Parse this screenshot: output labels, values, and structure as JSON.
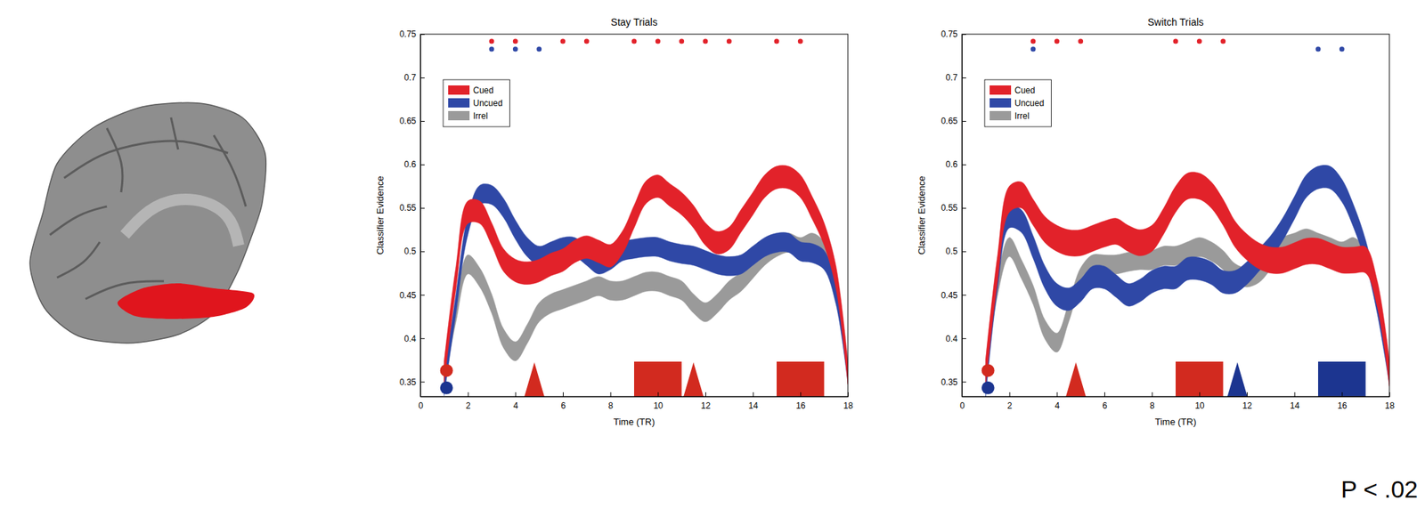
{
  "chart_data": [
    {
      "type": "line",
      "title": "Stay Trials",
      "xlabel": "Time (TR)",
      "ylabel": "Classifier Evidence",
      "xlim": [
        0,
        18
      ],
      "xticks": [
        0,
        2,
        4,
        6,
        8,
        10,
        12,
        14,
        16,
        18
      ],
      "ylim": [
        0.333,
        0.75
      ],
      "yticks": [
        0.35,
        0.4,
        0.45,
        0.5,
        0.55,
        0.6,
        0.65,
        0.7,
        0.75
      ],
      "legend": "upper left",
      "x": [
        1,
        1.5,
        2,
        2.5,
        3,
        3.5,
        4,
        4.5,
        5,
        5.5,
        6,
        6.5,
        7,
        7.5,
        8,
        8.5,
        9,
        9.5,
        10,
        10.5,
        11,
        11.5,
        12,
        12.5,
        13,
        13.5,
        14,
        14.5,
        15,
        15.5,
        16,
        16.5,
        17,
        17.5,
        18
      ],
      "series": [
        {
          "name": "Cued",
          "color": "#e2222a",
          "error": 0.013,
          "values": [
            0.36,
            0.47,
            0.545,
            0.545,
            0.52,
            0.49,
            0.478,
            0.475,
            0.478,
            0.485,
            0.49,
            0.5,
            0.505,
            0.5,
            0.495,
            0.51,
            0.54,
            0.568,
            0.575,
            0.565,
            0.555,
            0.54,
            0.52,
            0.51,
            0.515,
            0.535,
            0.555,
            0.575,
            0.585,
            0.585,
            0.575,
            0.55,
            0.52,
            0.47,
            0.36
          ],
          "significant_x": [
            3,
            4,
            6,
            7,
            9,
            10,
            11,
            12,
            13,
            15,
            16
          ]
        },
        {
          "name": "Uncued",
          "color": "#2f48a6",
          "error": 0.011,
          "values": [
            0.345,
            0.44,
            0.53,
            0.565,
            0.565,
            0.55,
            0.525,
            0.505,
            0.495,
            0.5,
            0.505,
            0.505,
            0.495,
            0.485,
            0.49,
            0.5,
            0.503,
            0.505,
            0.505,
            0.5,
            0.497,
            0.495,
            0.49,
            0.485,
            0.483,
            0.485,
            0.495,
            0.505,
            0.51,
            0.51,
            0.5,
            0.498,
            0.49,
            0.45,
            0.36
          ],
          "significant_x": [
            3,
            4,
            5
          ]
        },
        {
          "name": "Irrel",
          "color": "#9a9a9a",
          "error": 0.011,
          "values": [
            0.36,
            0.43,
            0.485,
            0.47,
            0.44,
            0.4,
            0.385,
            0.405,
            0.43,
            0.44,
            0.445,
            0.45,
            0.455,
            0.46,
            0.455,
            0.455,
            0.46,
            0.465,
            0.465,
            0.46,
            0.455,
            0.44,
            0.43,
            0.44,
            0.455,
            0.465,
            0.48,
            0.495,
            0.505,
            0.51,
            0.505,
            0.51,
            0.5,
            0.46,
            0.36
          ]
        }
      ],
      "events": [
        {
          "marker": "circle",
          "x": 1.1,
          "y": 0.363,
          "color": "#d22a1f"
        },
        {
          "marker": "circle",
          "x": 1.1,
          "y": 0.343,
          "color": "#1c3590"
        },
        {
          "marker": "triangle",
          "x": 4.8,
          "color": "#d22a1f"
        },
        {
          "marker": "rect",
          "x": [
            9,
            11
          ],
          "color": "#d22a1f"
        },
        {
          "marker": "triangle",
          "x": 11.5,
          "color": "#d22a1f"
        },
        {
          "marker": "rect",
          "x": [
            15,
            17
          ],
          "color": "#d22a1f"
        }
      ]
    },
    {
      "type": "line",
      "title": "Switch Trials",
      "xlabel": "Time (TR)",
      "ylabel": "Classifier Evidence",
      "xlim": [
        0,
        18
      ],
      "xticks": [
        0,
        2,
        4,
        6,
        8,
        10,
        12,
        14,
        16,
        18
      ],
      "ylim": [
        0.333,
        0.75
      ],
      "yticks": [
        0.35,
        0.4,
        0.45,
        0.5,
        0.55,
        0.6,
        0.65,
        0.7,
        0.75
      ],
      "legend": "upper left",
      "annotations": [
        "P < .02"
      ],
      "x": [
        1,
        1.5,
        2,
        2.5,
        3,
        3.5,
        4,
        4.5,
        5,
        5.5,
        6,
        6.5,
        7,
        7.5,
        8,
        8.5,
        9,
        9.5,
        10,
        10.5,
        11,
        11.5,
        12,
        12.5,
        13,
        13.5,
        14,
        14.5,
        15,
        15.5,
        16,
        16.5,
        17,
        17.5,
        18
      ],
      "series": [
        {
          "name": "Cued",
          "color": "#e2222a",
          "error": 0.015,
          "values": [
            0.36,
            0.48,
            0.56,
            0.565,
            0.545,
            0.525,
            0.515,
            0.51,
            0.51,
            0.515,
            0.52,
            0.523,
            0.515,
            0.51,
            0.515,
            0.535,
            0.56,
            0.575,
            0.575,
            0.565,
            0.545,
            0.52,
            0.505,
            0.495,
            0.49,
            0.49,
            0.495,
            0.5,
            0.5,
            0.495,
            0.49,
            0.49,
            0.49,
            0.45,
            0.36
          ],
          "significant_x": [
            3,
            4,
            5,
            9,
            10,
            11
          ]
        },
        {
          "name": "Uncued",
          "color": "#2f48a6",
          "error": 0.013,
          "values": [
            0.345,
            0.47,
            0.54,
            0.535,
            0.505,
            0.47,
            0.45,
            0.445,
            0.455,
            0.47,
            0.47,
            0.46,
            0.45,
            0.455,
            0.465,
            0.47,
            0.47,
            0.48,
            0.48,
            0.475,
            0.465,
            0.465,
            0.475,
            0.49,
            0.505,
            0.525,
            0.55,
            0.575,
            0.585,
            0.585,
            0.57,
            0.54,
            0.5,
            0.44,
            0.36
          ],
          "significant_x": [
            3,
            15,
            16
          ]
        },
        {
          "name": "Irrel",
          "color": "#9a9a9a",
          "error": 0.011,
          "values": [
            0.36,
            0.46,
            0.505,
            0.48,
            0.45,
            0.41,
            0.395,
            0.43,
            0.47,
            0.485,
            0.485,
            0.485,
            0.488,
            0.49,
            0.49,
            0.495,
            0.495,
            0.5,
            0.505,
            0.5,
            0.49,
            0.475,
            0.47,
            0.475,
            0.49,
            0.505,
            0.51,
            0.515,
            0.51,
            0.505,
            0.5,
            0.505,
            0.49,
            0.45,
            0.36
          ]
        }
      ],
      "events": [
        {
          "marker": "circle",
          "x": 1.1,
          "y": 0.363,
          "color": "#d22a1f"
        },
        {
          "marker": "circle",
          "x": 1.1,
          "y": 0.343,
          "color": "#1c3590"
        },
        {
          "marker": "triangle",
          "x": 4.8,
          "color": "#d22a1f"
        },
        {
          "marker": "rect",
          "x": [
            9,
            11
          ],
          "color": "#d22a1f"
        },
        {
          "marker": "triangle",
          "x": 11.6,
          "color": "#1c3590"
        },
        {
          "marker": "rect",
          "x": [
            15,
            17
          ],
          "color": "#1c3590"
        }
      ]
    }
  ]
}
